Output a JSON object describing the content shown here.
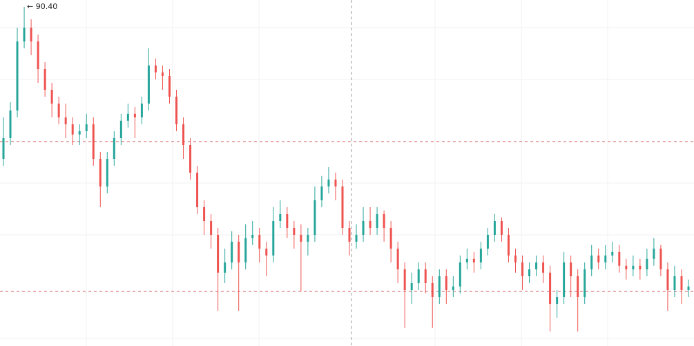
{
  "chart_data": {
    "type": "candlestick",
    "ylim": [
      78.125,
      90.65
    ],
    "up_color": "#26a69a",
    "down_color": "#ef5350",
    "annotation": {
      "value": 90.4,
      "label": "← 90.40"
    },
    "open": [
      84.9,
      85.65,
      86.65,
      89.15,
      89.65,
      89.15,
      88.15,
      87.4,
      86.9,
      86.4,
      86.15,
      85.78,
      85.9,
      86.15,
      84.9,
      83.9,
      84.9,
      85.65,
      86.28,
      86.53,
      86.4,
      86.9,
      88.28,
      88.03,
      87.9,
      87.15,
      86.15,
      85.4,
      84.4,
      83.15,
      82.65,
      82.15,
      80.78,
      81.15,
      81.9,
      81.15,
      82.03,
      82.15,
      81.65,
      81.4,
      82.65,
      82.9,
      82.4,
      82.15,
      81.9,
      82.15,
      83.4,
      83.9,
      84.15,
      83.9,
      82.4,
      81.9,
      82.15,
      82.65,
      82.4,
      82.9,
      82.4,
      81.65,
      80.9,
      80.15,
      80.4,
      80.9,
      80.4,
      79.9,
      80.65,
      80.15,
      80.28,
      81.15,
      81.28,
      81.15,
      81.65,
      82.15,
      82.65,
      82.15,
      81.4,
      81.15,
      80.65,
      80.9,
      81.15,
      80.78,
      79.65,
      79.9,
      81.15,
      80.65,
      79.9,
      80.9,
      81.4,
      81.15,
      81.4,
      81.53,
      81.03,
      80.9,
      81.03,
      80.9,
      81.28,
      81.65,
      80.9,
      80.15,
      80.65,
      80.15
    ],
    "high": [
      86.4,
      86.95,
      89.65,
      90.4,
      89.95,
      89.4,
      88.4,
      87.65,
      87.15,
      86.9,
      86.4,
      86.15,
      86.53,
      86.4,
      85.15,
      85.15,
      85.9,
      86.53,
      86.9,
      86.78,
      87.15,
      88.9,
      88.53,
      88.28,
      88.15,
      87.4,
      86.4,
      85.65,
      84.65,
      83.4,
      82.9,
      82.4,
      81.65,
      82.28,
      82.15,
      82.53,
      82.65,
      82.4,
      81.9,
      83.15,
      83.4,
      83.15,
      82.65,
      82.53,
      82.4,
      83.9,
      84.28,
      84.6,
      84.4,
      84.15,
      82.65,
      82.53,
      83.15,
      83.15,
      83.15,
      83.03,
      82.65,
      81.9,
      81.15,
      80.78,
      81.15,
      81.15,
      80.65,
      80.9,
      80.9,
      80.65,
      81.4,
      81.65,
      81.53,
      81.9,
      82.4,
      82.9,
      82.78,
      82.4,
      81.65,
      81.4,
      81.15,
      81.4,
      81.4,
      81.03,
      80.15,
      81.53,
      81.4,
      80.9,
      81.15,
      81.78,
      81.65,
      81.78,
      81.9,
      81.78,
      81.28,
      81.4,
      81.28,
      81.65,
      82.03,
      81.78,
      81.15,
      81.03,
      80.9,
      80.53
    ],
    "low": [
      84.65,
      85.4,
      86.4,
      88.9,
      88.65,
      87.65,
      87.15,
      86.4,
      86.15,
      85.65,
      85.4,
      85.4,
      85.65,
      84.65,
      83.15,
      83.65,
      84.65,
      85.4,
      86.03,
      85.65,
      86.15,
      86.65,
      87.78,
      87.4,
      86.9,
      85.9,
      84.9,
      84.15,
      82.9,
      82.15,
      81.65,
      79.4,
      80.4,
      80.9,
      79.4,
      80.9,
      81.78,
      81.15,
      80.65,
      81.15,
      82.4,
      82.03,
      81.65,
      80.1,
      81.4,
      81.9,
      83.15,
      83.65,
      83.4,
      82.15,
      81.4,
      81.65,
      81.9,
      82.15,
      82.15,
      81.9,
      81.15,
      80.4,
      78.78,
      79.65,
      80.15,
      80.03,
      78.78,
      79.65,
      79.65,
      79.9,
      80.03,
      80.9,
      80.78,
      80.9,
      81.4,
      81.9,
      81.9,
      81.15,
      80.78,
      80.15,
      80.4,
      80.65,
      80.4,
      78.65,
      79.15,
      79.65,
      79.9,
      78.65,
      79.65,
      80.65,
      80.9,
      80.9,
      81.15,
      80.78,
      80.53,
      80.65,
      80.53,
      80.65,
      81.03,
      80.65,
      79.4,
      79.9,
      79.65,
      79.9
    ],
    "close": [
      85.65,
      86.65,
      89.15,
      89.65,
      89.15,
      88.15,
      87.4,
      86.9,
      86.4,
      86.15,
      85.78,
      85.9,
      86.15,
      84.9,
      83.9,
      84.9,
      85.65,
      86.28,
      86.53,
      86.4,
      86.9,
      88.28,
      88.03,
      87.9,
      87.15,
      86.15,
      85.4,
      84.4,
      83.15,
      82.65,
      82.15,
      80.78,
      81.15,
      81.9,
      81.15,
      82.03,
      82.15,
      81.65,
      81.4,
      82.65,
      82.9,
      82.4,
      82.15,
      81.9,
      82.15,
      83.4,
      83.9,
      84.15,
      83.9,
      82.4,
      81.9,
      82.15,
      82.65,
      82.4,
      82.9,
      82.4,
      81.65,
      80.9,
      80.15,
      80.4,
      80.9,
      80.4,
      79.9,
      80.65,
      80.15,
      80.28,
      81.15,
      81.28,
      81.15,
      81.65,
      82.15,
      82.65,
      82.15,
      81.4,
      81.15,
      80.65,
      80.9,
      81.15,
      80.78,
      79.65,
      79.9,
      81.15,
      80.65,
      79.9,
      80.9,
      81.4,
      81.15,
      81.4,
      81.53,
      81.03,
      80.9,
      81.03,
      80.9,
      81.28,
      81.65,
      80.9,
      80.15,
      80.65,
      80.15,
      80.28
    ]
  }
}
